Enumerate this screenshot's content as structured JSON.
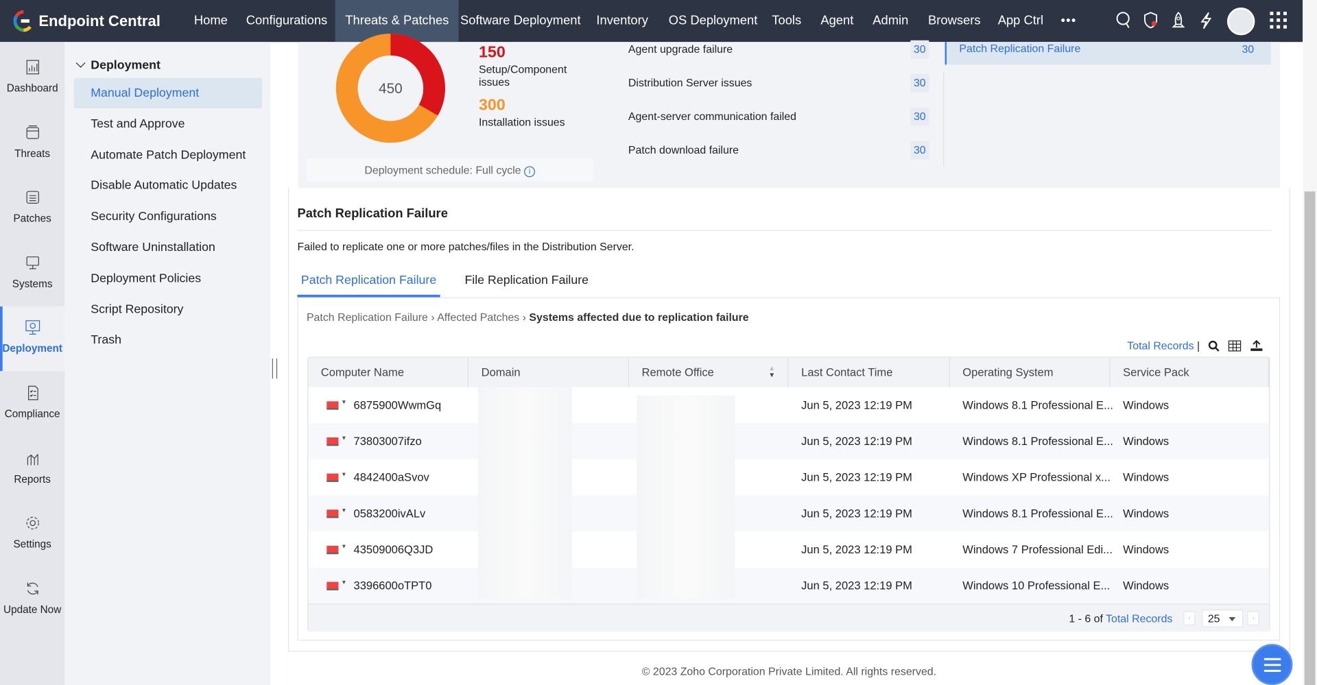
{
  "app": {
    "title": "Endpoint Central"
  },
  "nav": [
    "Home",
    "Configurations",
    "Threats & Patches",
    "Software Deployment",
    "Inventory",
    "OS Deployment",
    "Tools",
    "Agent",
    "Admin",
    "Browsers",
    "App Ctrl"
  ],
  "nav_active": "Threats & Patches",
  "nav_more": "•••",
  "rail": [
    "Dashboard",
    "Threats",
    "Patches",
    "Systems",
    "Deployment",
    "Compliance",
    "Reports",
    "Settings",
    "Update Now"
  ],
  "rail_active": "Deployment",
  "submenu": {
    "header": "Deployment",
    "items": [
      "Manual Deployment",
      "Test and Approve",
      "Automate Patch Deployment",
      "Disable Automatic Updates",
      "Security Configurations",
      "Software Uninstallation",
      "Deployment Policies",
      "Script Repository",
      "Trash"
    ],
    "active": "Manual Deployment"
  },
  "summary": {
    "total": "450",
    "setup_count": "150",
    "setup_label": "Setup/Component issues",
    "install_count": "300",
    "install_label": "Installation issues",
    "schedule": "Deployment schedule: Full cycle",
    "issues": [
      {
        "label": "Agent upgrade failure",
        "count": "30"
      },
      {
        "label": "Distribution Server issues",
        "count": "30"
      },
      {
        "label": "Agent-server communication failed",
        "count": "30"
      },
      {
        "label": "Patch download failure",
        "count": "30"
      }
    ],
    "selected": {
      "label": "Patch Replication Failure",
      "count": "30"
    },
    "colors": {
      "setup": "#d9141a",
      "install": "#f7952a"
    }
  },
  "detail": {
    "title": "Patch Replication Failure",
    "description": "Failed to replicate one or more patches/files in the Distribution Server.",
    "tabs": [
      "Patch Replication Failure",
      "File Replication Failure"
    ],
    "breadcrumb": [
      "Patch Replication Failure",
      "Affected Patches",
      "Systems affected due to replication failure"
    ],
    "total_records": "Total Records",
    "columns": [
      "Computer Name",
      "Domain",
      "Remote Office",
      "Last Contact Time",
      "Operating System",
      "Service Pack"
    ],
    "rows": [
      {
        "name": "6875900WwmGq",
        "time": "Jun 5, 2023 12:19 PM",
        "os": "Windows 8.1 Professional E...",
        "sp": "Windows"
      },
      {
        "name": "73803007ifzo",
        "time": "Jun 5, 2023 12:19 PM",
        "os": "Windows 8.1 Professional E...",
        "sp": "Windows"
      },
      {
        "name": "4842400aSvov",
        "time": "Jun 5, 2023 12:19 PM",
        "os": "Windows XP Professional x...",
        "sp": "Windows"
      },
      {
        "name": "0583200ivALv",
        "time": "Jun 5, 2023 12:19 PM",
        "os": "Windows 8.1 Professional E...",
        "sp": "Windows"
      },
      {
        "name": "43509006Q3JD",
        "time": "Jun 5, 2023 12:19 PM",
        "os": "Windows 7 Professional Edi...",
        "sp": "Windows"
      },
      {
        "name": "3396600oTPT0",
        "time": "Jun 5, 2023 12:19 PM",
        "os": "Windows 10 Professional E...",
        "sp": "Windows"
      }
    ],
    "pager": {
      "range": "1 - 6 of",
      "link": "Total Records",
      "page_size": "25"
    }
  },
  "footer": "© 2023 Zoho Corporation Private Limited.  All rights reserved."
}
